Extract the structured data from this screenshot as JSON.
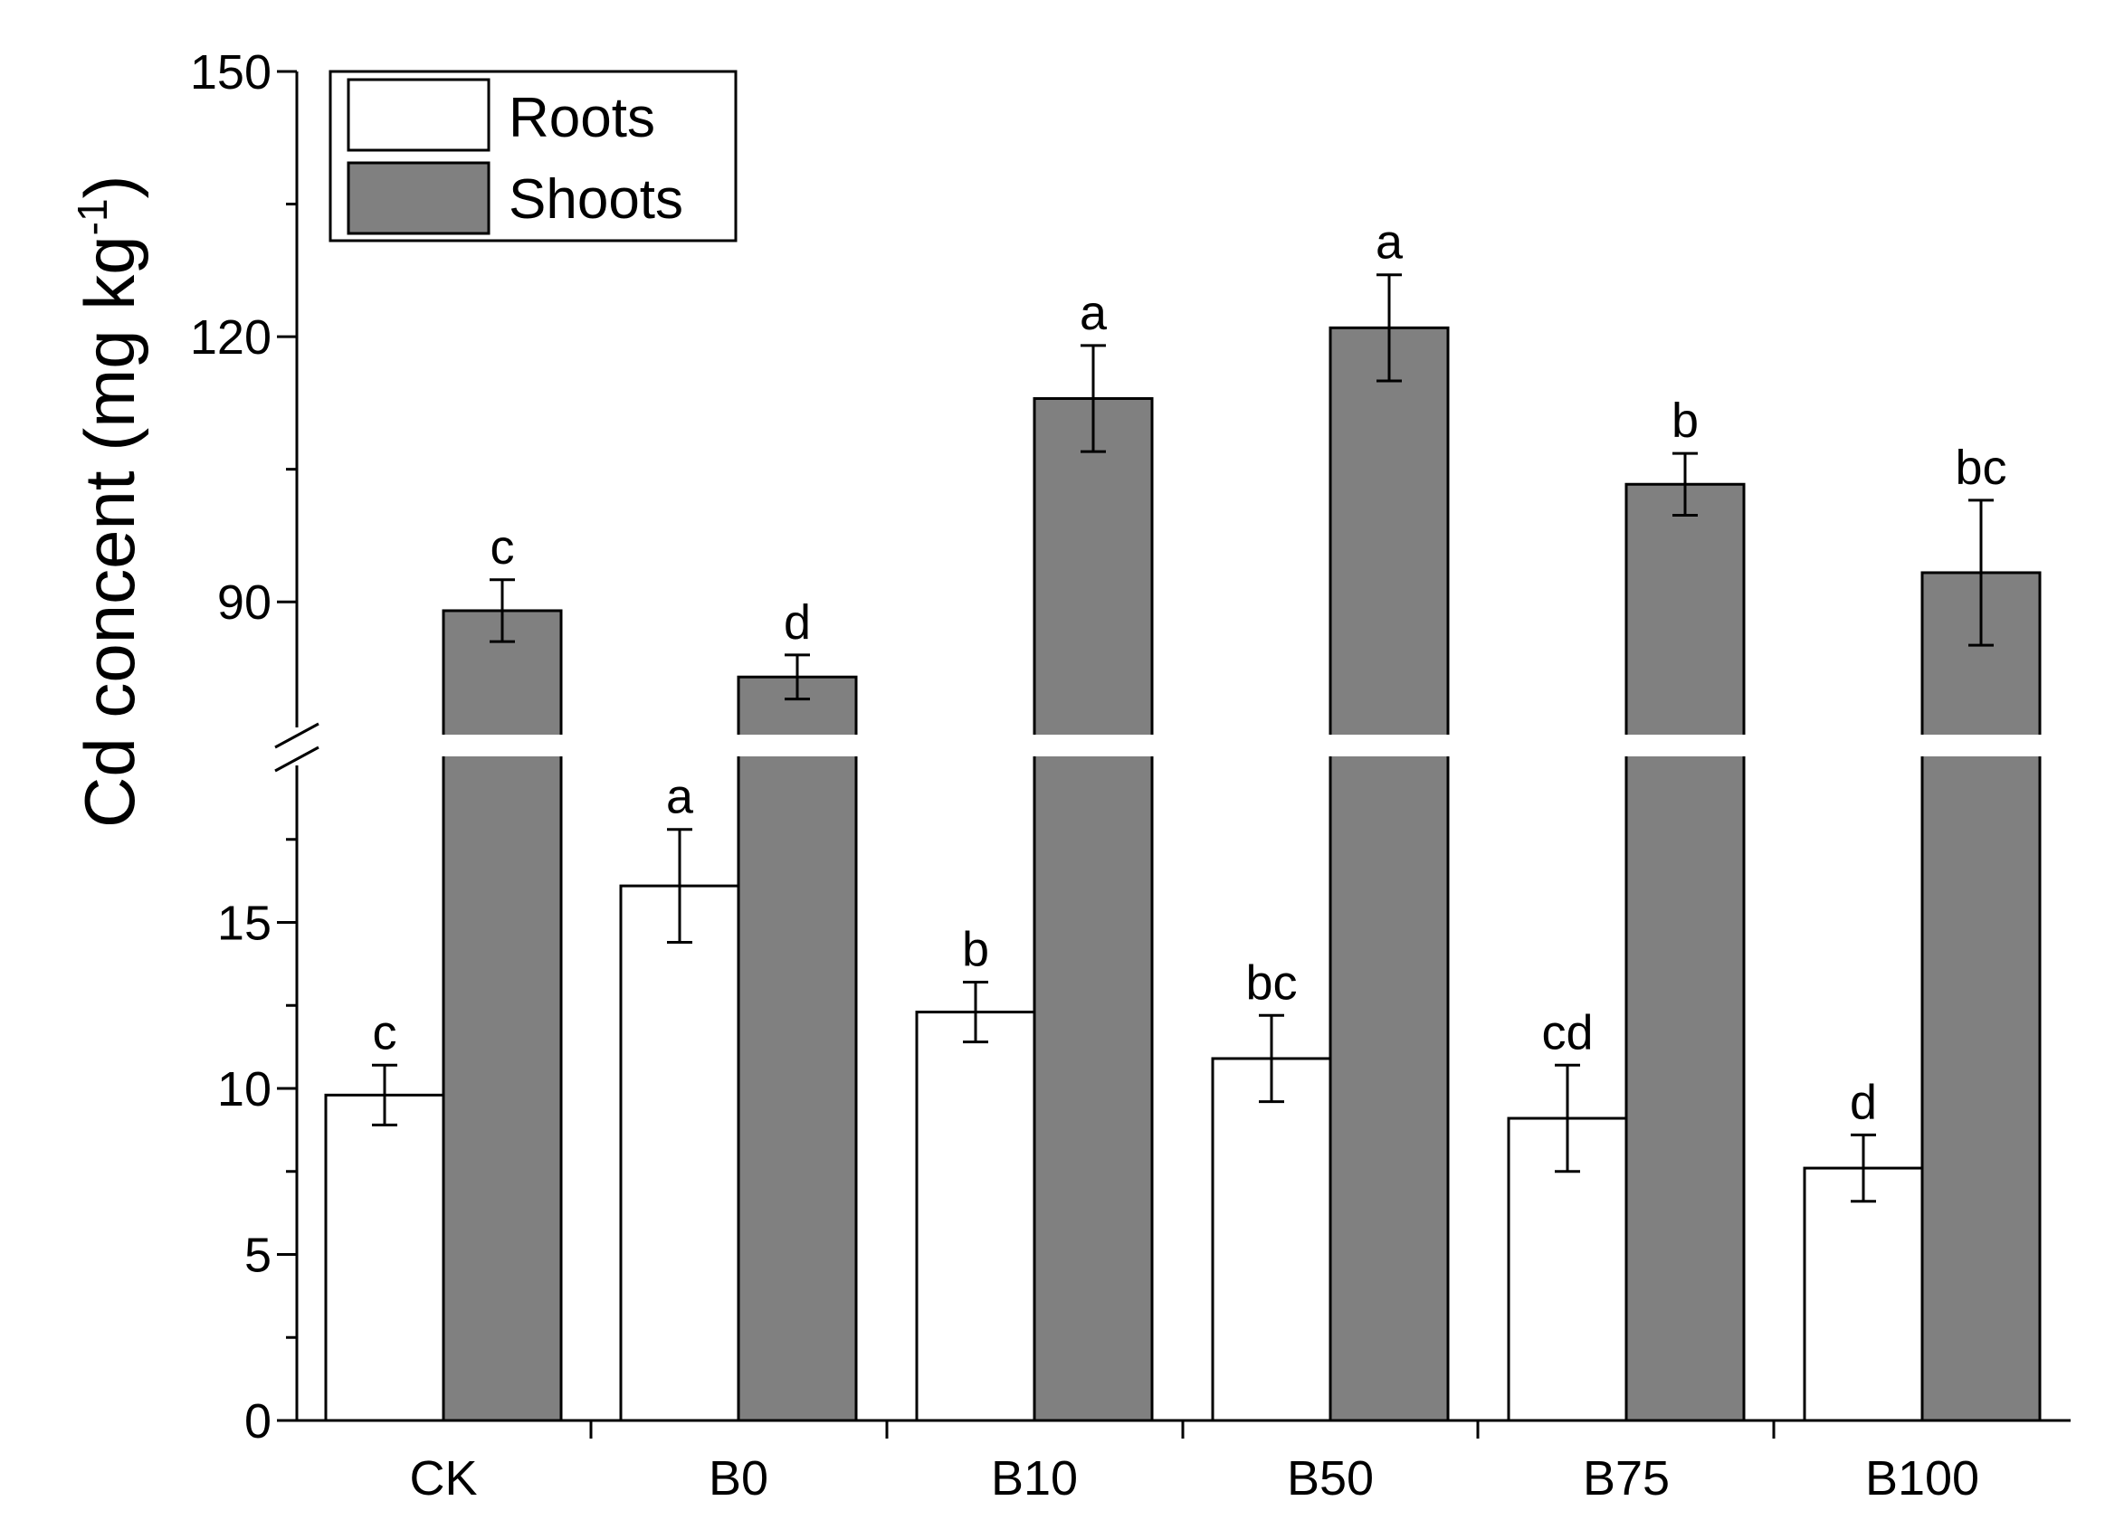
{
  "chart_data": {
    "type": "bar",
    "ylabel": "Cd concent (mg kg",
    "ylabel_superscript": "-1",
    "ylabel_close": ")",
    "categories": [
      "CK",
      "B0",
      "B10",
      "B50",
      "B75",
      "B100"
    ],
    "y_axis_break": true,
    "lower_range": [
      0,
      20
    ],
    "upper_range": [
      75,
      150
    ],
    "lower_ticks": [
      "0",
      "5",
      "10",
      "15"
    ],
    "upper_ticks": [
      "90",
      "120",
      "150"
    ],
    "legend_position": "top-left",
    "series": [
      {
        "name": "Roots",
        "color": "#ffffff",
        "values": [
          9.8,
          16.1,
          12.3,
          10.9,
          9.1,
          7.6
        ],
        "errors": [
          0.9,
          1.7,
          0.9,
          1.3,
          1.6,
          1.0
        ],
        "letters": [
          "c",
          "a",
          "b",
          "bc",
          "cd",
          "d"
        ]
      },
      {
        "name": "Shoots",
        "color": "#808080",
        "values": [
          89.0,
          81.5,
          113.0,
          121.0,
          103.3,
          93.3
        ],
        "errors": [
          3.5,
          2.5,
          6.0,
          6.0,
          3.5,
          8.2
        ],
        "letters": [
          "c",
          "d",
          "a",
          "a",
          "b",
          "bc"
        ]
      }
    ]
  }
}
